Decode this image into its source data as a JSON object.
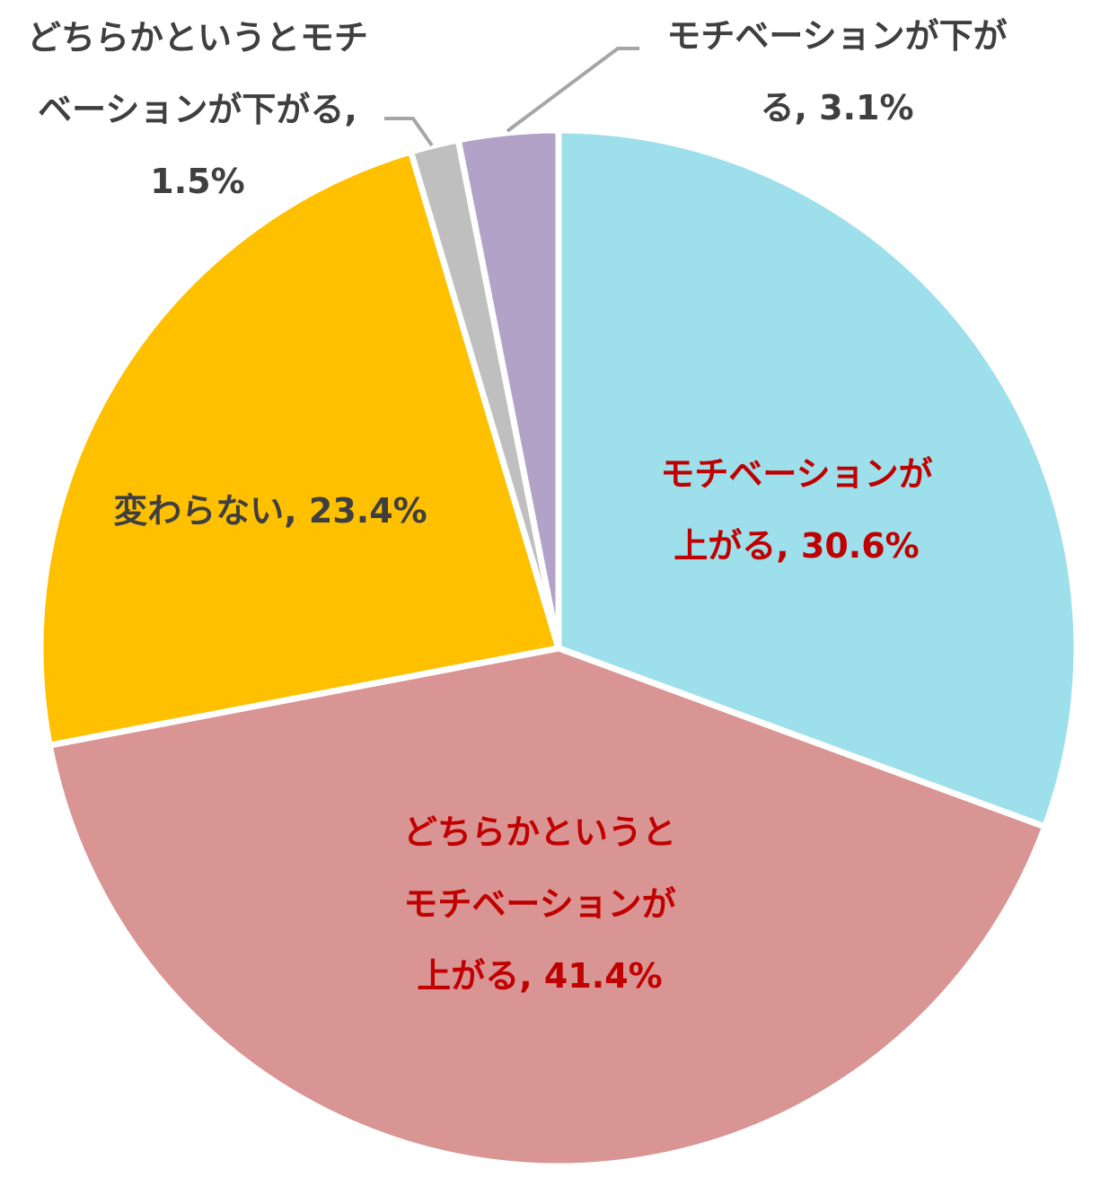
{
  "chart_data": {
    "type": "pie",
    "start_angle_deg": 0,
    "direction": "clockwise",
    "slices": [
      {
        "label": "モチベーションが上がる",
        "value": 30.6,
        "color": "#9ddfea",
        "label_color": "#c00000",
        "label_lines": [
          "モチベーションが",
          "上がる, 30.6%"
        ]
      },
      {
        "label": "どちらかというとモチベーションが上がる",
        "value": 41.4,
        "color": "#d99594",
        "label_color": "#c00000",
        "label_lines": [
          "どちらかというと",
          "モチベーションが",
          "上がる, 41.4%"
        ]
      },
      {
        "label": "変わらない",
        "value": 23.4,
        "color": "#ffc000",
        "label_color": "#3f3f3f",
        "label_lines": [
          "変わらない, 23.4%"
        ]
      },
      {
        "label": "どちらかというとモチベーションが下がる",
        "value": 1.5,
        "color": "#bfbfbf",
        "label_color": "#3f3f3f",
        "label_lines": [
          "どちらかというとモチ",
          "ベーションが下がる,",
          "1.5%"
        ]
      },
      {
        "label": "モチベーションが下がる",
        "value": 3.1,
        "color": "#b2a2c7",
        "label_color": "#3f3f3f",
        "label_lines": [
          "モチベーションが下が",
          "る, 3.1%"
        ]
      }
    ]
  }
}
